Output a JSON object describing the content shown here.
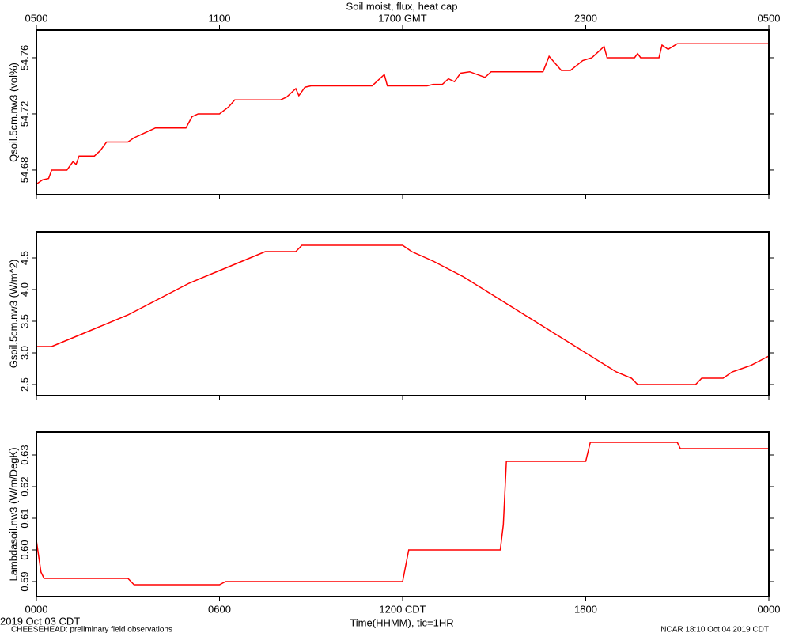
{
  "chart_data": [
    {
      "type": "line",
      "title": "Soil moist, flux, heat cap",
      "ylabel": "Qsoil.5cm.nw3 (vol%)",
      "color": "#ff0000",
      "xlim": [
        0,
        24
      ],
      "x2ticks": [
        {
          "value": 0,
          "label": "0500"
        },
        {
          "value": 6,
          "label": "1100"
        },
        {
          "value": 12,
          "label": "1700 GMT"
        },
        {
          "value": 18,
          "label": "2300"
        },
        {
          "value": 24,
          "label": "0500"
        }
      ],
      "ylim": [
        54.6625,
        54.7797
      ],
      "yticks": [
        54.68,
        54.72,
        54.76
      ],
      "x": [
        0,
        0.2,
        0.4,
        0.5,
        1.0,
        1.2,
        1.3,
        1.4,
        1.9,
        2.1,
        2.3,
        3.0,
        3.2,
        3.5,
        3.9,
        4.9,
        5.1,
        5.3,
        6.0,
        6.3,
        6.5,
        8.0,
        8.2,
        8.5,
        8.6,
        8.8,
        9.0,
        11.0,
        11.4,
        11.5,
        12.8,
        13.0,
        13.3,
        13.5,
        13.7,
        13.9,
        14.2,
        14.7,
        14.9,
        16.6,
        16.8,
        17.2,
        17.5,
        17.9,
        18.2,
        18.6,
        18.7,
        19.6,
        19.7,
        19.8,
        20.4,
        20.5,
        20.7,
        21.0,
        24.0
      ],
      "values": [
        54.67,
        54.673,
        54.674,
        54.68,
        54.68,
        54.686,
        54.684,
        54.69,
        54.69,
        54.694,
        54.7,
        54.7,
        54.703,
        54.706,
        54.71,
        54.71,
        54.718,
        54.72,
        54.72,
        54.725,
        54.73,
        54.73,
        54.732,
        54.738,
        54.733,
        54.739,
        54.74,
        54.74,
        54.748,
        54.74,
        54.74,
        54.741,
        54.741,
        54.745,
        54.743,
        54.749,
        54.75,
        54.746,
        54.75,
        54.75,
        54.761,
        54.751,
        54.751,
        54.758,
        54.76,
        54.768,
        54.76,
        54.76,
        54.763,
        54.76,
        54.76,
        54.769,
        54.766,
        54.77,
        54.77
      ]
    },
    {
      "type": "line",
      "ylabel": "Gsoil.5cm.nw3 (W/m^2)",
      "color": "#ff0000",
      "xlim": [
        0,
        24
      ],
      "ylim": [
        2.325,
        4.9125
      ],
      "yticks": [
        2.5,
        {
          "value": 3,
          "label": "3.0"
        },
        3.5,
        {
          "value": 4,
          "label": "4.0"
        },
        4.5
      ],
      "x": [
        0,
        0.5,
        1,
        2,
        3,
        4,
        5,
        6,
        7,
        7.5,
        8.5,
        8.7,
        12,
        12.3,
        13,
        14,
        15,
        16,
        17,
        18,
        18.5,
        19,
        19.5,
        19.7,
        21.6,
        21.8,
        22.5,
        22.8,
        23.4,
        23.8,
        24
      ],
      "values": [
        3.1,
        3.1,
        3.2,
        3.4,
        3.6,
        3.85,
        4.1,
        4.3,
        4.5,
        4.6,
        4.6,
        4.7,
        4.7,
        4.6,
        4.45,
        4.2,
        3.9,
        3.6,
        3.3,
        3.0,
        2.85,
        2.7,
        2.6,
        2.5,
        2.5,
        2.6,
        2.6,
        2.7,
        2.8,
        2.9,
        2.95
      ]
    },
    {
      "type": "line",
      "ylabel": "Lambdasoil.nw3 (W/m/DegK)",
      "color": "#ff0000",
      "xlim": [
        0,
        24
      ],
      "xticks": [
        {
          "value": 0,
          "label": "0000"
        },
        {
          "value": 6,
          "label": "0600"
        },
        {
          "value": 12,
          "label": "1200 CDT"
        },
        {
          "value": 18,
          "label": "1800"
        },
        {
          "value": 24,
          "label": "0000"
        }
      ],
      "xlabel": "Time(HHMM), tic=1HR",
      "ylim": [
        0.58525,
        0.63725
      ],
      "yticks": [
        0.59,
        {
          "value": 0.6,
          "label": "0.60"
        },
        0.61,
        0.62,
        0.63
      ],
      "x": [
        0,
        0.15,
        0.25,
        3.0,
        3.2,
        6.0,
        6.2,
        12.0,
        12.2,
        15.2,
        15.3,
        15.4,
        18.0,
        18.15,
        21.0,
        21.1,
        24
      ],
      "values": [
        0.603,
        0.593,
        0.591,
        0.591,
        0.589,
        0.589,
        0.59,
        0.59,
        0.6,
        0.6,
        0.608,
        0.628,
        0.628,
        0.634,
        0.634,
        0.632,
        0.632
      ]
    }
  ],
  "footer": {
    "date": "2019 Oct 03 CDT",
    "project": "CHEESEHEAD: preliminary field observations",
    "stamp": "NCAR 18:10 Oct 04 2019 CDT"
  }
}
